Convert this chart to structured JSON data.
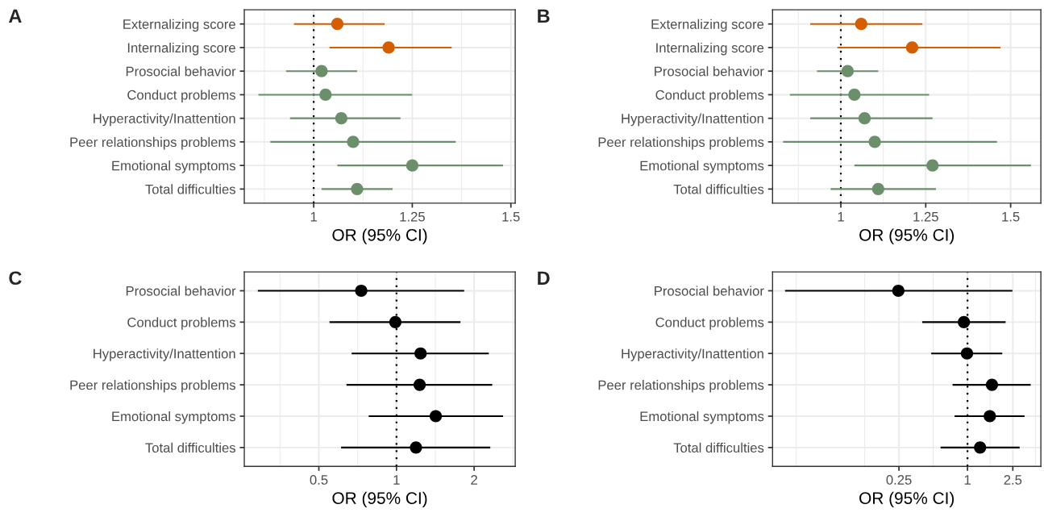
{
  "chart_data": [
    {
      "type": "scatter",
      "title": "A",
      "xlabel": "OR (95% CI)",
      "orientation": "horizontal",
      "marker": "circle",
      "grid": true,
      "categories": [
        "Externalizing score",
        "Internalizing score",
        "Prosocial behavior",
        "Conduct problems",
        "Hyperactivity/Inattention",
        "Peer relationships problems",
        "Emotional symptoms",
        "Total difficulties"
      ],
      "values": [
        1.06,
        1.19,
        1.02,
        1.03,
        1.07,
        1.1,
        1.25,
        1.11
      ],
      "errors": [
        [
          0.95,
          1.18
        ],
        [
          1.04,
          1.35
        ],
        [
          0.93,
          1.11
        ],
        [
          0.86,
          1.25
        ],
        [
          0.94,
          1.22
        ],
        [
          0.89,
          1.36
        ],
        [
          1.06,
          1.48
        ],
        [
          1.02,
          1.2
        ]
      ],
      "colors": [
        "#d55e00",
        "#d55e00",
        "#6b8e6b",
        "#6b8e6b",
        "#6b8e6b",
        "#6b8e6b",
        "#6b8e6b",
        "#6b8e6b"
      ],
      "xlim": [
        0.824,
        1.511
      ],
      "xticks": [
        1,
        1.25,
        1.5
      ],
      "ref_lines": [
        {
          "axis": "x",
          "value": 1,
          "line_style": "dotted",
          "color": "#000000"
        }
      ]
    },
    {
      "type": "scatter",
      "title": "B",
      "xlabel": "OR (95% CI)",
      "orientation": "horizontal",
      "marker": "circle",
      "grid": true,
      "categories": [
        "Externalizing score",
        "Internalizing score",
        "Prosocial behavior",
        "Conduct problems",
        "Hyperactivity/Inattention",
        "Peer relationships problems",
        "Emotional symptoms",
        "Total difficulties"
      ],
      "values": [
        1.06,
        1.21,
        1.02,
        1.04,
        1.07,
        1.1,
        1.27,
        1.11
      ],
      "errors": [
        [
          0.91,
          1.24
        ],
        [
          0.99,
          1.47
        ],
        [
          0.93,
          1.11
        ],
        [
          0.85,
          1.26
        ],
        [
          0.91,
          1.27
        ],
        [
          0.83,
          1.46
        ],
        [
          1.04,
          1.56
        ],
        [
          0.97,
          1.28
        ]
      ],
      "colors": [
        "#d55e00",
        "#d55e00",
        "#6b8e6b",
        "#6b8e6b",
        "#6b8e6b",
        "#6b8e6b",
        "#6b8e6b",
        "#6b8e6b"
      ],
      "xlim": [
        0.799,
        1.589
      ],
      "xticks": [
        1,
        1.25,
        1.5
      ],
      "ref_lines": [
        {
          "axis": "x",
          "value": 1,
          "line_style": "dotted",
          "color": "#000000"
        }
      ]
    },
    {
      "type": "scatter",
      "title": "C",
      "xlabel": "OR (95% CI)",
      "orientation": "horizontal",
      "marker": "circle",
      "grid": true,
      "log": "x",
      "categories": [
        "Prosocial behavior",
        "Conduct problems",
        "Hyperactivity/Inattention",
        "Peer relationships problems",
        "Emotional symptoms",
        "Total difficulties"
      ],
      "values": [
        0.73,
        0.99,
        1.24,
        1.23,
        1.42,
        1.19
      ],
      "errors": [
        [
          0.29,
          1.83
        ],
        [
          0.55,
          1.77
        ],
        [
          0.67,
          2.28
        ],
        [
          0.64,
          2.35
        ],
        [
          0.78,
          2.59
        ],
        [
          0.61,
          2.31
        ]
      ],
      "colors": [
        "#000000",
        "#000000",
        "#000000",
        "#000000",
        "#000000",
        "#000000"
      ],
      "xlim": [
        0.257,
        2.886
      ],
      "xticks": [
        0.5,
        1,
        2
      ],
      "ref_lines": [
        {
          "axis": "x",
          "value": 1,
          "line_style": "dotted",
          "color": "#000000"
        }
      ]
    },
    {
      "type": "scatter",
      "title": "D",
      "xlabel": "OR (95% CI)",
      "orientation": "horizontal",
      "marker": "circle",
      "grid": true,
      "log": "x",
      "categories": [
        "Prosocial behavior",
        "Conduct problems",
        "Hyperactivity/Inattention",
        "Peer relationships problems",
        "Emotional symptoms",
        "Total difficulties"
      ],
      "values": [
        0.247,
        0.93,
        0.99,
        1.64,
        1.57,
        1.29
      ],
      "errors": [
        [
          0.025,
          2.48
        ],
        [
          0.4,
          2.16
        ],
        [
          0.48,
          2.02
        ],
        [
          0.74,
          3.59
        ],
        [
          0.77,
          3.17
        ],
        [
          0.58,
          2.87
        ]
      ],
      "colors": [
        "#000000",
        "#000000",
        "#000000",
        "#000000",
        "#000000",
        "#000000"
      ],
      "xlim": [
        0.0194,
        4.41
      ],
      "xticks": [
        0.25,
        1,
        2.5
      ],
      "ref_lines": [
        {
          "axis": "x",
          "value": 1,
          "line_style": "dotted",
          "color": "#000000"
        }
      ]
    }
  ]
}
